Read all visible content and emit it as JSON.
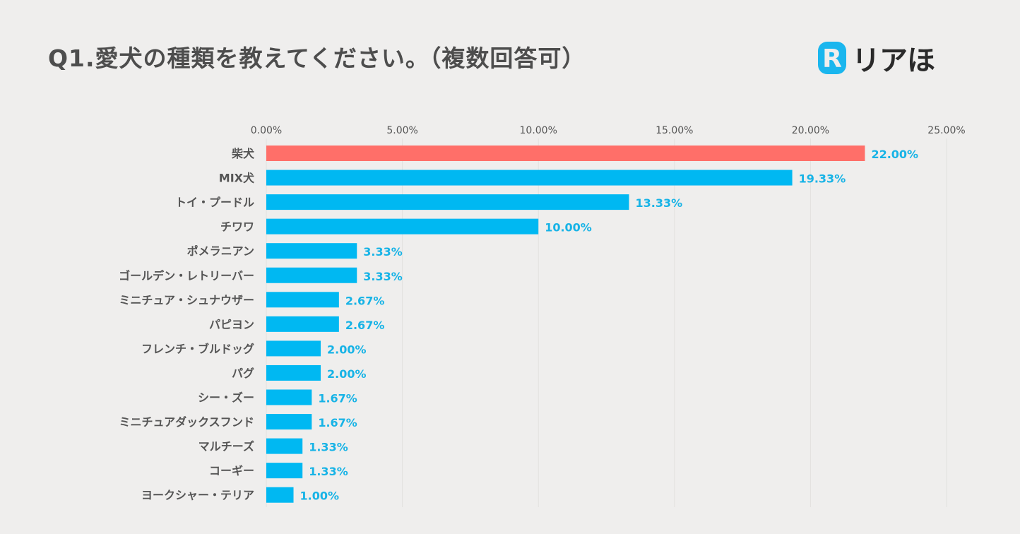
{
  "header": {
    "title": "Q1.愛犬の種類を教えてください。（複数回答可）"
  },
  "logo": {
    "mark_letter": "R",
    "text": "リアほ",
    "mark_color": "#1ab6ee"
  },
  "colors": {
    "highlight_bar": "#ff6f69",
    "bar": "#00b8f2",
    "value_label": "#17b3e6",
    "background": "#efeeed"
  },
  "chart_data": {
    "type": "bar",
    "orientation": "horizontal",
    "title": "Q1.愛犬の種類を教えてください。（複数回答可）",
    "xlabel": "",
    "ylabel": "",
    "xlim": [
      0,
      25
    ],
    "xticks": [
      0,
      5,
      10,
      15,
      20,
      25
    ],
    "xtick_labels": [
      "0.00%",
      "5.00%",
      "10.00%",
      "15.00%",
      "20.00%",
      "25.00%"
    ],
    "axis_position": "top",
    "grid": true,
    "legend": "none",
    "categories": [
      "柴犬",
      "MIX犬",
      "トイ・プードル",
      "チワワ",
      "ポメラニアン",
      "ゴールデン・レトリーバー",
      "ミニチュア・シュナウザー",
      "パピヨン",
      "フレンチ・ブルドッグ",
      "パグ",
      "シー・ズー",
      "ミニチュアダックスフンド",
      "マルチーズ",
      "コーギー",
      "ヨークシャー・テリア"
    ],
    "values": [
      22.0,
      19.33,
      13.33,
      10.0,
      3.33,
      3.33,
      2.67,
      2.67,
      2.0,
      2.0,
      1.67,
      1.67,
      1.33,
      1.33,
      1.0
    ],
    "value_labels": [
      "22.00%",
      "19.33%",
      "13.33%",
      "10.00%",
      "3.33%",
      "3.33%",
      "2.67%",
      "2.67%",
      "2.00%",
      "2.00%",
      "1.67%",
      "1.67%",
      "1.33%",
      "1.33%",
      "1.00%"
    ],
    "highlight_index": 0
  }
}
